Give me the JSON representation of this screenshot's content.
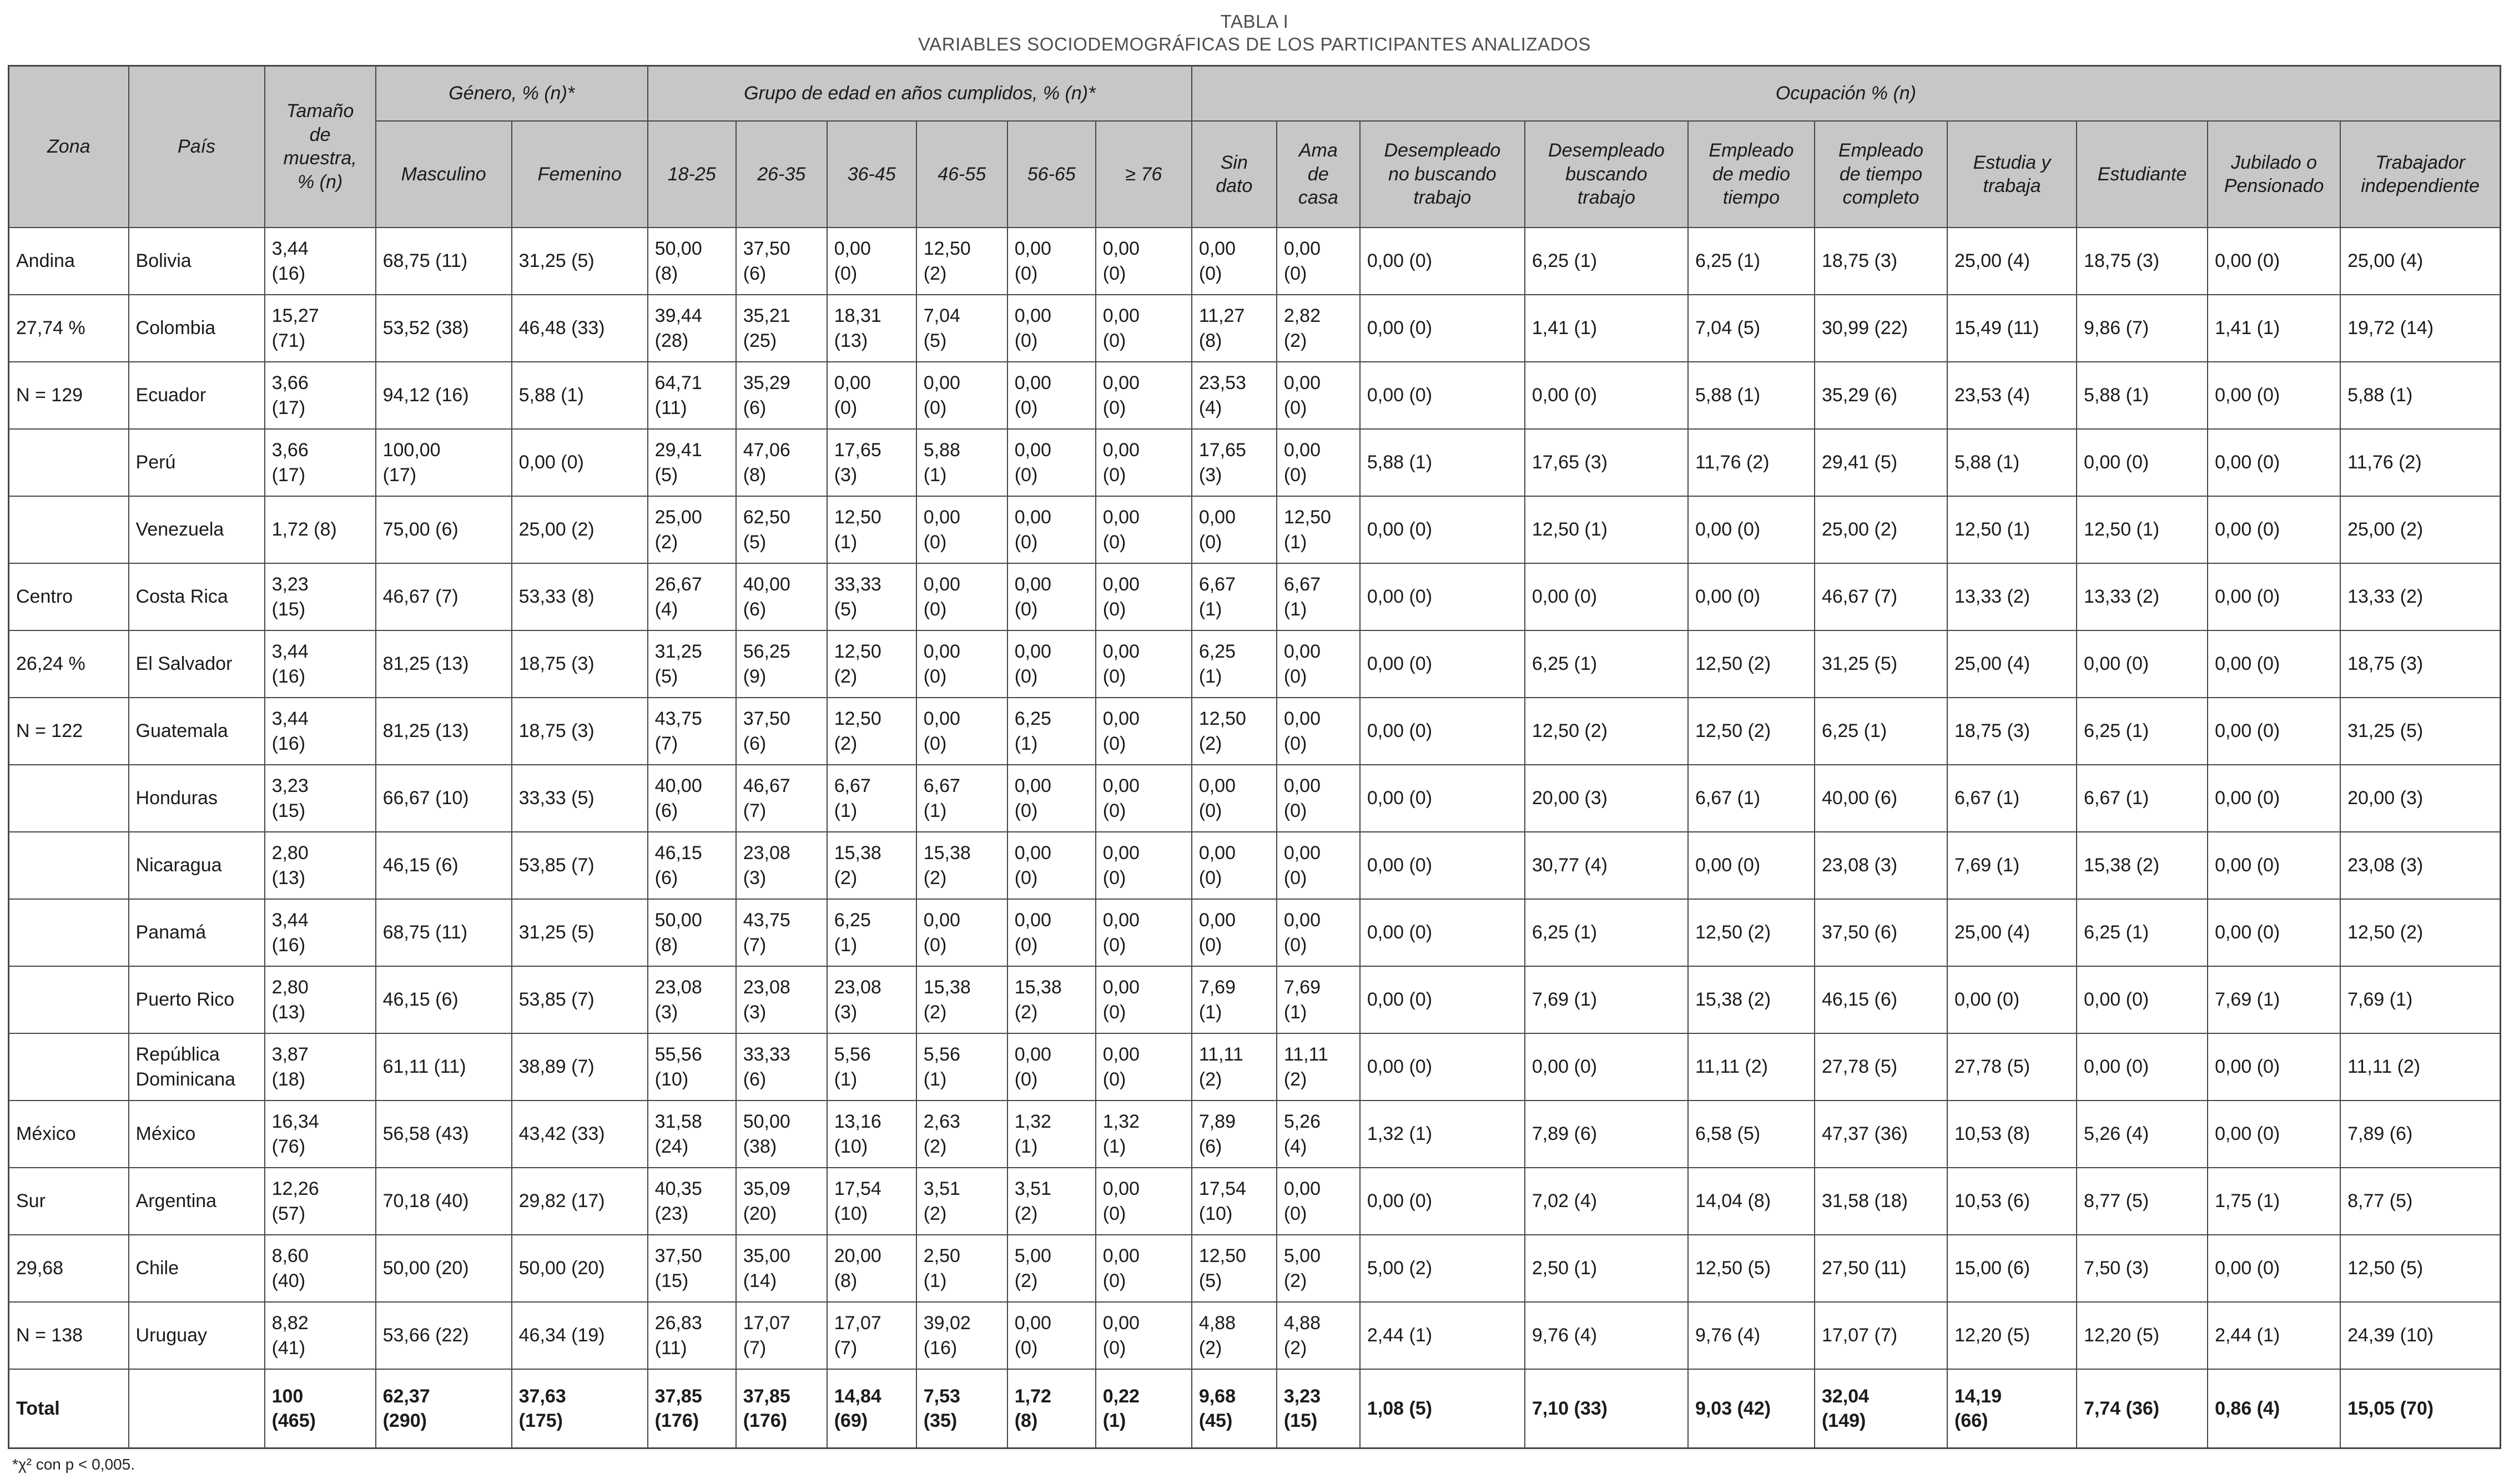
{
  "page": {
    "title": "TABLA I",
    "subtitle": "VARIABLES SOCIODEMOGRÁFICAS DE LOS PARTICIPANTES ANALIZADOS",
    "footnote": "*χ² con p < 0,005."
  },
  "table": {
    "top_headers": [
      {
        "label": "Zona"
      },
      {
        "label": "País"
      },
      {
        "label": "Tamaño\nde\nmuestra,\n% (n)"
      },
      {
        "label": "Género, % (n)*",
        "span": 2
      },
      {
        "label": "Grupo de edad en años cumplidos, % (n)*",
        "span": 6
      },
      {
        "label": "Ocupación % (n)",
        "span": 10
      }
    ],
    "sub_headers": [
      "Masculino",
      "Femenino",
      "18-25",
      "26-35",
      "36-45",
      "46-55",
      "56-65",
      "≥ 76",
      "Sin\ndato",
      "Ama\nde\ncasa",
      "Desempleado\nno buscando\ntrabajo",
      "Desempleado\nbuscando\ntrabajo",
      "Empleado\nde medio\ntiempo",
      "Empleado\nde tiempo\ncompleto",
      "Estudia y\ntrabaja",
      "Estudiante",
      "Jubilado o\nPensionado",
      "Trabajador\nindependiente"
    ],
    "rows": [
      {
        "zona": "Andina",
        "pais": "Bolivia",
        "cells": [
          "3,44 (16)",
          "68,75 (11)",
          "31,25 (5)",
          "50,00 (8)",
          "37,50 (6)",
          "0,00 (0)",
          "12,50 (2)",
          "0,00 (0)",
          "0,00 (0)",
          "0,00 (0)",
          "0,00 (0)",
          "0,00 (0)",
          "6,25 (1)",
          "6,25 (1)",
          "18,75 (3)",
          "25,00 (4)",
          "18,75 (3)",
          "0,00 (0)",
          "25,00 (4)"
        ]
      },
      {
        "zona": "27,74 %",
        "pais": "Colombia",
        "cells": [
          "15,27 (71)",
          "53,52 (38)",
          "46,48 (33)",
          "39,44 (28)",
          "35,21 (25)",
          "18,31 (13)",
          "7,04 (5)",
          "0,00 (0)",
          "0,00 (0)",
          "11,27 (8)",
          "2,82 (2)",
          "0,00 (0)",
          "1,41 (1)",
          "7,04 (5)",
          "30,99 (22)",
          "15,49 (11)",
          "9,86 (7)",
          "1,41 (1)",
          "19,72 (14)"
        ]
      },
      {
        "zona": "N = 129",
        "pais": "Ecuador",
        "cells": [
          "3,66 (17)",
          "94,12 (16)",
          "5,88 (1)",
          "64,71 (11)",
          "35,29 (6)",
          "0,00 (0)",
          "0,00 (0)",
          "0,00 (0)",
          "0,00 (0)",
          "23,53 (4)",
          "0,00 (0)",
          "0,00 (0)",
          "0,00 (0)",
          "5,88 (1)",
          "35,29 (6)",
          "23,53 (4)",
          "5,88 (1)",
          "0,00 (0)",
          "5,88 (1)"
        ]
      },
      {
        "zona": "",
        "pais": "Perú",
        "cells": [
          "3,66 (17)",
          "100,00 (17)",
          "0,00 (0)",
          "29,41 (5)",
          "47,06 (8)",
          "17,65 (3)",
          "5,88 (1)",
          "0,00 (0)",
          "0,00 (0)",
          "17,65 (3)",
          "0,00 (0)",
          "5,88 (1)",
          "17,65 (3)",
          "11,76 (2)",
          "29,41 (5)",
          "5,88 (1)",
          "0,00 (0)",
          "0,00 (0)",
          "11,76 (2)"
        ]
      },
      {
        "zona": "",
        "pais": "Venezuela",
        "cells": [
          "1,72 (8)",
          "75,00 (6)",
          "25,00 (2)",
          "25,00 (2)",
          "62,50 (5)",
          "12,50 (1)",
          "0,00 (0)",
          "0,00 (0)",
          "0,00 (0)",
          "0,00 (0)",
          "12,50 (1)",
          "0,00 (0)",
          "12,50 (1)",
          "0,00 (0)",
          "25,00 (2)",
          "12,50 (1)",
          "12,50 (1)",
          "0,00 (0)",
          "25,00 (2)"
        ]
      },
      {
        "zona": "Centro",
        "pais": "Costa Rica",
        "cells": [
          "3,23 (15)",
          "46,67 (7)",
          "53,33 (8)",
          "26,67 (4)",
          "40,00 (6)",
          "33,33 (5)",
          "0,00 (0)",
          "0,00 (0)",
          "0,00 (0)",
          "6,67 (1)",
          "6,67 (1)",
          "0,00 (0)",
          "0,00 (0)",
          "0,00 (0)",
          "46,67 (7)",
          "13,33 (2)",
          "13,33 (2)",
          "0,00 (0)",
          "13,33 (2)"
        ]
      },
      {
        "zona": "26,24 %",
        "pais": "El Salvador",
        "cells": [
          "3,44 (16)",
          "81,25 (13)",
          "18,75 (3)",
          "31,25 (5)",
          "56,25 (9)",
          "12,50 (2)",
          "0,00 (0)",
          "0,00 (0)",
          "0,00 (0)",
          "6,25 (1)",
          "0,00 (0)",
          "0,00 (0)",
          "6,25 (1)",
          "12,50 (2)",
          "31,25 (5)",
          "25,00 (4)",
          "0,00 (0)",
          "0,00 (0)",
          "18,75 (3)"
        ]
      },
      {
        "zona": "N = 122",
        "pais": "Guatemala",
        "cells": [
          "3,44 (16)",
          "81,25 (13)",
          "18,75 (3)",
          "43,75 (7)",
          "37,50 (6)",
          "12,50 (2)",
          "0,00 (0)",
          "6,25 (1)",
          "0,00 (0)",
          "12,50 (2)",
          "0,00 (0)",
          "0,00 (0)",
          "12,50 (2)",
          "12,50 (2)",
          "6,25 (1)",
          "18,75 (3)",
          "6,25 (1)",
          "0,00 (0)",
          "31,25 (5)"
        ]
      },
      {
        "zona": "",
        "pais": "Honduras",
        "cells": [
          "3,23 (15)",
          "66,67 (10)",
          "33,33 (5)",
          "40,00 (6)",
          "46,67 (7)",
          "6,67 (1)",
          "6,67 (1)",
          "0,00 (0)",
          "0,00 (0)",
          "0,00 (0)",
          "0,00 (0)",
          "0,00 (0)",
          "20,00 (3)",
          "6,67 (1)",
          "40,00 (6)",
          "6,67 (1)",
          "6,67 (1)",
          "0,00 (0)",
          "20,00 (3)"
        ]
      },
      {
        "zona": "",
        "pais": "Nicaragua",
        "cells": [
          "2,80 (13)",
          "46,15 (6)",
          "53,85 (7)",
          "46,15 (6)",
          "23,08 (3)",
          "15,38 (2)",
          "15,38 (2)",
          "0,00 (0)",
          "0,00 (0)",
          "0,00 (0)",
          "0,00 (0)",
          "0,00 (0)",
          "30,77 (4)",
          "0,00 (0)",
          "23,08 (3)",
          "7,69 (1)",
          "15,38 (2)",
          "0,00 (0)",
          "23,08 (3)"
        ]
      },
      {
        "zona": "",
        "pais": "Panamá",
        "cells": [
          "3,44 (16)",
          "68,75 (11)",
          "31,25 (5)",
          "50,00 (8)",
          "43,75 (7)",
          "6,25 (1)",
          "0,00 (0)",
          "0,00 (0)",
          "0,00 (0)",
          "0,00 (0)",
          "0,00 (0)",
          "0,00 (0)",
          "6,25 (1)",
          "12,50 (2)",
          "37,50 (6)",
          "25,00 (4)",
          "6,25 (1)",
          "0,00 (0)",
          "12,50 (2)"
        ]
      },
      {
        "zona": "",
        "pais": "Puerto Rico",
        "cells": [
          "2,80 (13)",
          "46,15 (6)",
          "53,85 (7)",
          "23,08 (3)",
          "23,08 (3)",
          "23,08 (3)",
          "15,38 (2)",
          "15,38 (2)",
          "0,00 (0)",
          "7,69 (1)",
          "7,69 (1)",
          "0,00 (0)",
          "7,69 (1)",
          "15,38 (2)",
          "46,15 (6)",
          "0,00 (0)",
          "0,00 (0)",
          "7,69 (1)",
          "7,69 (1)"
        ]
      },
      {
        "zona": "",
        "pais": "República Dominicana",
        "cells": [
          "3,87 (18)",
          "61,11 (11)",
          "38,89 (7)",
          "55,56 (10)",
          "33,33 (6)",
          "5,56 (1)",
          "5,56 (1)",
          "0,00 (0)",
          "0,00 (0)",
          "11,11 (2)",
          "11,11 (2)",
          "0,00 (0)",
          "0,00 (0)",
          "11,11 (2)",
          "27,78 (5)",
          "27,78 (5)",
          "0,00 (0)",
          "0,00 (0)",
          "11,11 (2)"
        ]
      },
      {
        "zona": "México",
        "pais": "México",
        "cells": [
          "16,34 (76)",
          "56,58 (43)",
          "43,42 (33)",
          "31,58 (24)",
          "50,00 (38)",
          "13,16 (10)",
          "2,63 (2)",
          "1,32 (1)",
          "1,32 (1)",
          "7,89 (6)",
          "5,26 (4)",
          "1,32 (1)",
          "7,89 (6)",
          "6,58 (5)",
          "47,37 (36)",
          "10,53 (8)",
          "5,26 (4)",
          "0,00 (0)",
          "7,89 (6)"
        ]
      },
      {
        "zona": "Sur",
        "pais": "Argentina",
        "cells": [
          "12,26 (57)",
          "70,18 (40)",
          "29,82 (17)",
          "40,35 (23)",
          "35,09 (20)",
          "17,54 (10)",
          "3,51 (2)",
          "3,51 (2)",
          "0,00 (0)",
          "17,54 (10)",
          "0,00 (0)",
          "0,00 (0)",
          "7,02 (4)",
          "14,04 (8)",
          "31,58 (18)",
          "10,53 (6)",
          "8,77 (5)",
          "1,75 (1)",
          "8,77 (5)"
        ]
      },
      {
        "zona": "29,68",
        "pais": "Chile",
        "cells": [
          "8,60 (40)",
          "50,00 (20)",
          "50,00 (20)",
          "37,50 (15)",
          "35,00 (14)",
          "20,00 (8)",
          "2,50 (1)",
          "5,00 (2)",
          "0,00 (0)",
          "12,50 (5)",
          "5,00 (2)",
          "5,00 (2)",
          "2,50 (1)",
          "12,50 (5)",
          "27,50 (11)",
          "15,00 (6)",
          "7,50 (3)",
          "0,00 (0)",
          "12,50 (5)"
        ]
      },
      {
        "zona": "N = 138",
        "pais": "Uruguay",
        "cells": [
          "8,82 (41)",
          "53,66 (22)",
          "46,34 (19)",
          "26,83 (11)",
          "17,07 (7)",
          "17,07 (7)",
          "39,02 (16)",
          "0,00 (0)",
          "0,00 (0)",
          "4,88 (2)",
          "4,88 (2)",
          "2,44 (1)",
          "9,76 (4)",
          "9,76 (4)",
          "17,07 (7)",
          "12,20 (5)",
          "12,20 (5)",
          "2,44 (1)",
          "24,39 (10)"
        ]
      }
    ],
    "total_row": {
      "label": "Total",
      "cells": [
        "100 (465)",
        "62,37 (290)",
        "37,63 (175)",
        "37,85 (176)",
        "37,85 (176)",
        "14,84 (69)",
        "7,53 (35)",
        "1,72 (8)",
        "0,22 (1)",
        "9,68 (45)",
        "3,23 (15)",
        "1,08 (5)",
        "7,10 (33)",
        "9,03 (42)",
        "32,04 (149)",
        "14,19 (66)",
        "7,74 (36)",
        "0,86 (4)",
        "15,05 (70)"
      ]
    }
  }
}
